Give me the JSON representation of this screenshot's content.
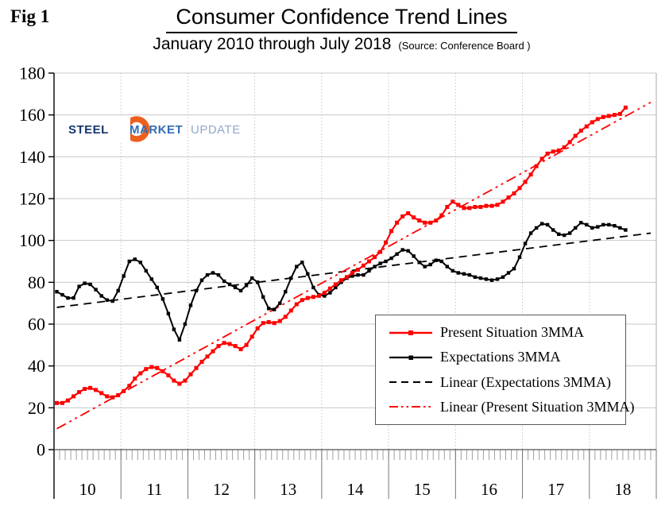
{
  "header": {
    "fig_label": "Fig 1"
  },
  "logo": {
    "steel": "STEEL",
    "market": "MARKET",
    "update": "UPDATE",
    "colors": {
      "orange": "#ed5f1e",
      "steel_navy": "#14356f",
      "market_blue": "#2e6db4",
      "update_light_blue": "#8fa9c9"
    }
  },
  "chart_data": {
    "type": "line",
    "title": "Consumer Confidence Trend Lines",
    "subtitle": "January 2010 through July 2018",
    "source": "(Source: Conference Board )",
    "x_unit": "month",
    "x_start": "Jan 2010",
    "x_end": "Jul 2018",
    "n_points": 103,
    "x_tick_labels": [
      "10",
      "11",
      "12",
      "13",
      "14",
      "15",
      "16",
      "17",
      "18"
    ],
    "y_ticks": [
      0,
      20,
      40,
      60,
      80,
      100,
      120,
      140,
      160,
      180
    ],
    "ylim": [
      0,
      180
    ],
    "grid": true,
    "legend_position": "box center-right",
    "colors": {
      "grid": "#c8c8c8",
      "year_grid": "#c4c4c4",
      "axis": "#000000",
      "minor_tick": "#a0a0a0",
      "separator": "#777777"
    },
    "series": [
      {
        "name": "Present Situation 3MMA",
        "color": "#ff0000",
        "style": "solid-square-markers",
        "values": [
          22.3,
          22.3,
          23.5,
          25.5,
          27.5,
          29,
          29.5,
          28.5,
          27,
          25.5,
          25,
          26,
          28,
          30.5,
          34,
          36.5,
          38.5,
          39.5,
          39,
          37.5,
          35.5,
          33,
          31.5,
          33,
          36,
          39,
          42,
          44.5,
          47,
          49.5,
          51,
          50.5,
          49.5,
          48,
          50,
          54,
          58,
          60.5,
          61,
          60.5,
          61.5,
          63.5,
          66.5,
          69.5,
          71.5,
          72.5,
          73,
          73.5,
          75,
          77,
          79,
          81,
          82.5,
          84.5,
          86,
          88,
          90,
          92,
          94.5,
          99,
          104.5,
          108.5,
          111.5,
          113,
          111,
          109.5,
          108.5,
          108.5,
          109.5,
          112,
          116,
          118.5,
          117,
          115.5,
          115.5,
          116,
          116,
          116.5,
          116.5,
          117,
          118.5,
          120.5,
          122.5,
          125,
          128,
          131.5,
          135.5,
          139,
          141.5,
          142.5,
          143,
          144.5,
          147,
          150,
          152.5,
          154.5,
          156.5,
          158,
          159,
          159.5,
          160,
          160.5,
          163.5
        ]
      },
      {
        "name": "Expectations 3MMA",
        "color": "#000000",
        "style": "solid-square-markers",
        "values": [
          75.5,
          74,
          72.5,
          72.5,
          78,
          79.5,
          79,
          76.5,
          73.5,
          71.5,
          71,
          76,
          83,
          90,
          91,
          89.5,
          85.5,
          81.5,
          77.5,
          72,
          65,
          57.5,
          52.5,
          60,
          69,
          76,
          81,
          83.5,
          84.5,
          83.5,
          80.5,
          79,
          77.5,
          76,
          78.5,
          82,
          80,
          73,
          67.5,
          67,
          70,
          75.5,
          82,
          87.5,
          89.5,
          84,
          77.5,
          74,
          73.5,
          75,
          77.5,
          80,
          82,
          83,
          83.5,
          83.5,
          85.5,
          87.5,
          89,
          90,
          91.5,
          93.5,
          95.5,
          95,
          92.5,
          89.5,
          87.5,
          88.5,
          90.5,
          90,
          87.5,
          85.5,
          84.5,
          84,
          83.5,
          82.5,
          82,
          81.5,
          81,
          81.5,
          82.5,
          84.5,
          86.5,
          92,
          98.5,
          103.5,
          106,
          108,
          107.5,
          105,
          103,
          102.5,
          103.5,
          106,
          108.5,
          107.5,
          106,
          106.5,
          107.5,
          107.5,
          107,
          106,
          105
        ]
      },
      {
        "name": "Linear (Expectations 3MMA)",
        "color": "#000000",
        "style": "dashed",
        "trend": {
          "start_value": 68,
          "end_value": 103.5
        }
      },
      {
        "name": "Linear (Present Situation 3MMA)",
        "color": "#ff0000",
        "style": "dash-dot-dot",
        "trend": {
          "start_value": 10,
          "end_value": 166
        }
      }
    ]
  }
}
